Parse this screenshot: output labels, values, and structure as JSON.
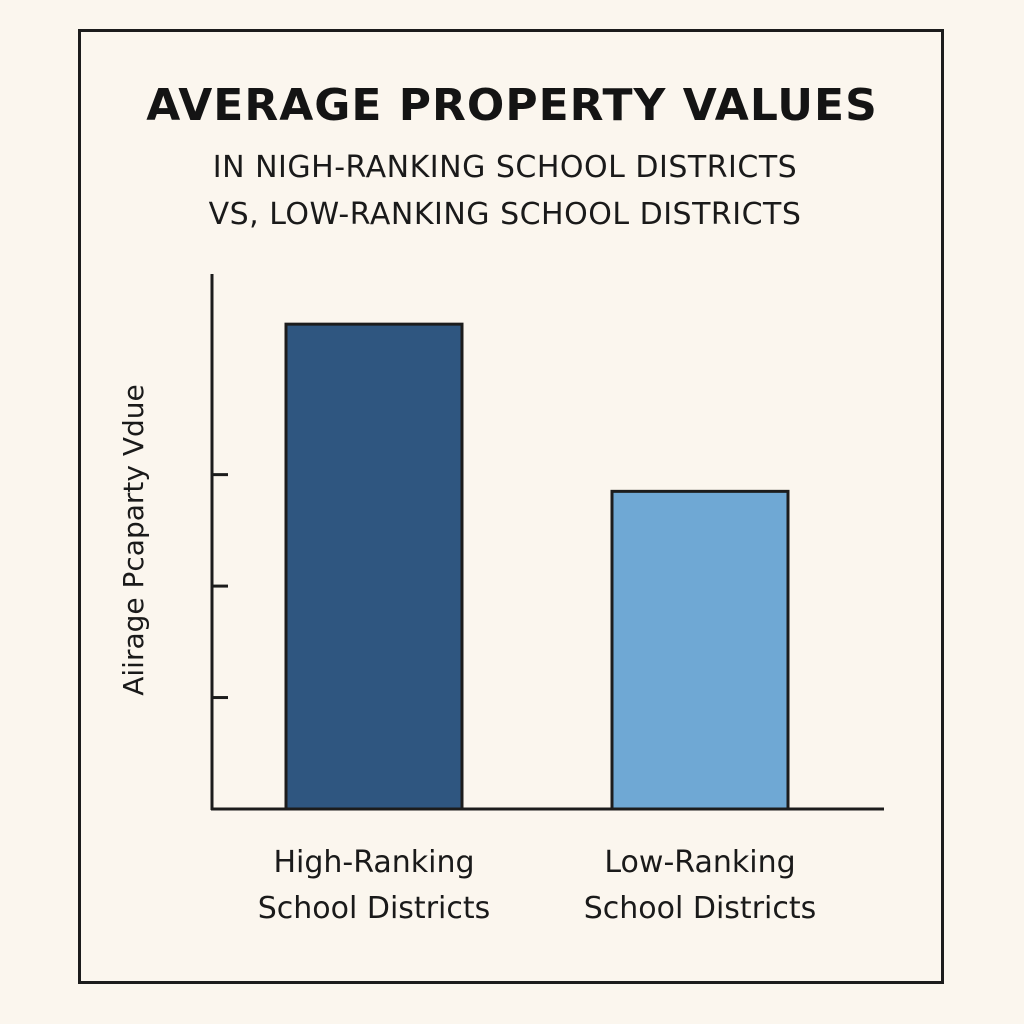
{
  "chart_data": {
    "type": "bar",
    "title": "AVERAGE PROPERTY VALUES",
    "subtitle_lines": [
      "IN NIGH-RANKING SCHOOL DISTRICTS",
      "VS, LOW-RANKING SCHOOL DISTRICTS"
    ],
    "ylabel": "Aiirage Pcaparty Vdue",
    "xlabel": "",
    "categories": [
      [
        "High-Ranking",
        "School Districts"
      ],
      [
        "Low-Ranking",
        "School Districts"
      ]
    ],
    "values": [
      4.35,
      2.85
    ],
    "ylim": [
      0,
      4.8
    ],
    "yticks": [
      1,
      2,
      3
    ],
    "grid": false,
    "colors": [
      "#2f5680",
      "#6fa8d4"
    ],
    "bar_outline": "#1c1c1c",
    "axis_color": "#1c1c1c"
  }
}
